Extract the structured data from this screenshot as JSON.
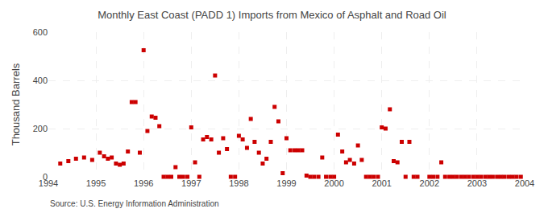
{
  "chart_data": {
    "type": "scatter",
    "title": "Monthly East Coast (PADD 1) Imports from Mexico of Asphalt and Road Oil",
    "ylabel": "Thousand Barrels",
    "annotations": [
      "Source: U.S. Energy Information Administration"
    ],
    "color": "#cc0000",
    "marker": "square",
    "grid": true,
    "xlim": [
      1994.0,
      2004.0
    ],
    "xticks": [
      1994,
      1995,
      1996,
      1997,
      1998,
      1999,
      2000,
      2001,
      2002,
      2003,
      2004
    ],
    "ylim": [
      0,
      600
    ],
    "yticks": [
      0,
      200,
      400,
      600
    ],
    "x": [
      1994.25,
      1994.42,
      1994.58,
      1994.75,
      1994.92,
      1995.08,
      1995.17,
      1995.25,
      1995.33,
      1995.42,
      1995.5,
      1995.58,
      1995.67,
      1995.75,
      1995.83,
      1995.92,
      1996.0,
      1996.08,
      1996.17,
      1996.25,
      1996.33,
      1996.42,
      1996.5,
      1996.58,
      1996.67,
      1996.75,
      1996.83,
      1996.92,
      1997.0,
      1997.08,
      1997.17,
      1997.25,
      1997.33,
      1997.42,
      1997.5,
      1997.58,
      1997.67,
      1997.75,
      1997.83,
      1997.92,
      1998.0,
      1998.08,
      1998.17,
      1998.25,
      1998.33,
      1998.42,
      1998.5,
      1998.58,
      1998.67,
      1998.75,
      1998.83,
      1998.92,
      1999.0,
      1999.08,
      1999.17,
      1999.25,
      1999.33,
      1999.42,
      1999.5,
      1999.58,
      1999.67,
      1999.75,
      1999.83,
      1999.92,
      2000.0,
      2000.08,
      2000.17,
      2000.25,
      2000.33,
      2000.42,
      2000.5,
      2000.58,
      2000.67,
      2000.75,
      2000.83,
      2000.92,
      2001.0,
      2001.08,
      2001.17,
      2001.25,
      2001.33,
      2001.42,
      2001.5,
      2001.58,
      2001.67,
      2001.75,
      2002.0,
      2002.08,
      2002.17,
      2002.25,
      2002.33,
      2002.42,
      2002.5,
      2002.58,
      2002.67,
      2002.75,
      2002.83,
      2002.92,
      2003.0,
      2003.08,
      2003.17,
      2003.25,
      2003.33,
      2003.42,
      2003.5,
      2003.58,
      2003.67,
      2003.75,
      2003.83,
      2003.92
    ],
    "values": [
      55,
      65,
      75,
      80,
      70,
      100,
      85,
      75,
      80,
      55,
      50,
      55,
      105,
      310,
      310,
      100,
      525,
      190,
      250,
      245,
      210,
      0,
      0,
      0,
      40,
      0,
      0,
      0,
      205,
      60,
      0,
      155,
      165,
      155,
      420,
      100,
      160,
      115,
      0,
      0,
      170,
      155,
      120,
      240,
      145,
      100,
      55,
      75,
      145,
      290,
      230,
      15,
      160,
      110,
      110,
      110,
      110,
      5,
      0,
      0,
      0,
      80,
      0,
      0,
      0,
      175,
      105,
      60,
      70,
      55,
      130,
      70,
      0,
      0,
      0,
      0,
      205,
      200,
      280,
      65,
      60,
      145,
      0,
      145,
      0,
      0,
      0,
      0,
      0,
      60,
      0,
      0,
      0,
      0,
      0,
      0,
      0,
      0,
      0,
      0,
      0,
      0,
      0,
      0,
      0,
      0,
      0,
      0,
      0,
      0
    ]
  }
}
